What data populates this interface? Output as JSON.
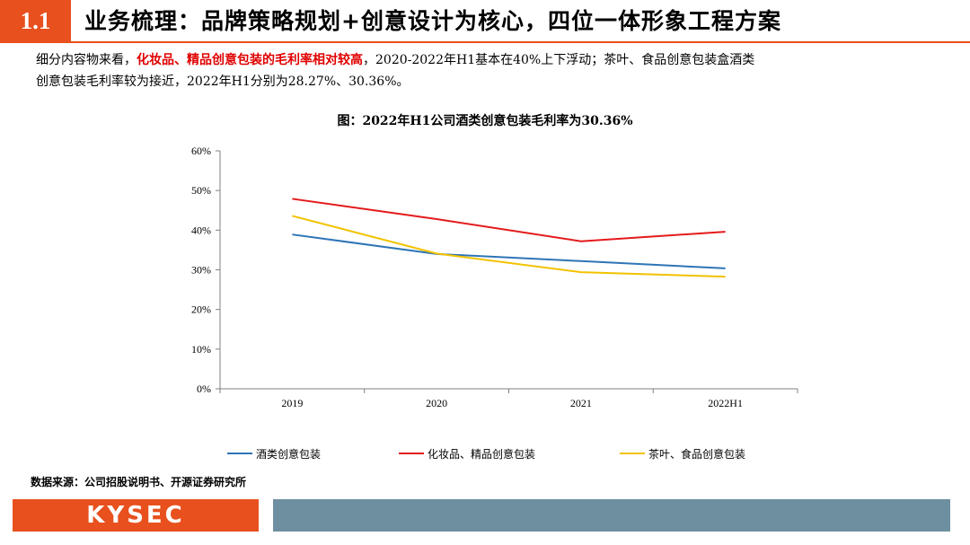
{
  "header": {
    "section_number": "1.1",
    "title": "业务梳理：品牌策略规划+创意设计为核心，四位一体形象工程方案"
  },
  "description": {
    "line1_pre": "细分内容物来看，",
    "line1_highlight": "化妆品、精品创意包装的毛利率相对较高",
    "line1_post": "，2020-2022年H1基本在40%上下浮动；茶叶、食品创意包装盒酒类",
    "line2": "创意包装毛利率较为接近，2022年H1分别为28.27%、30.36%。"
  },
  "chart_data": {
    "type": "line",
    "title": "图：2022年H1公司酒类创意包装毛利率为30.36%",
    "xlabel": "",
    "ylabel": "",
    "categories": [
      "2019",
      "2020",
      "2021",
      "2022H1"
    ],
    "ylim": [
      0,
      60
    ],
    "yticks": [
      "0%",
      "10%",
      "20%",
      "30%",
      "40%",
      "50%",
      "60%"
    ],
    "grid": false,
    "legend_position": "bottom",
    "series": [
      {
        "name": "酒类创意包装",
        "color": "#2e75b6",
        "values": [
          38.9,
          34.0,
          32.2,
          30.36
        ]
      },
      {
        "name": "化妆品、精品创意包装",
        "color": "#e41a1c",
        "values": [
          47.9,
          42.8,
          37.2,
          39.6
        ]
      },
      {
        "name": "茶叶、食品创意包装",
        "color": "#f2c200",
        "values": [
          43.6,
          34.1,
          29.4,
          28.27
        ]
      }
    ]
  },
  "footer": {
    "source": "数据来源：公司招股说明书、开源证券研究所",
    "logo_text": "KYSEC"
  }
}
